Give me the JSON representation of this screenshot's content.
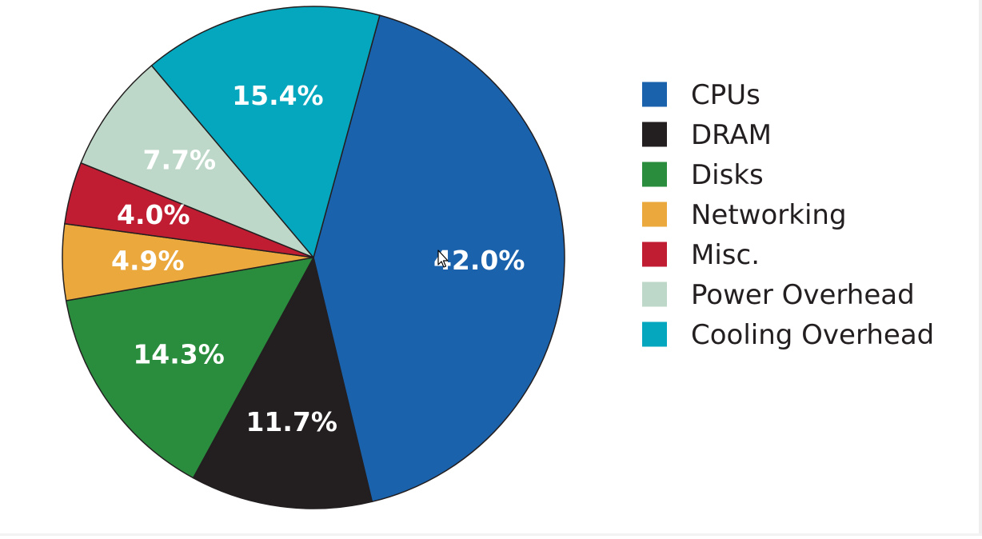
{
  "chart_data": {
    "type": "pie",
    "slices": [
      {
        "label": "CPUs",
        "value": 42.0,
        "value_label": "42.0%",
        "color": "#1b62ad"
      },
      {
        "label": "DRAM",
        "value": 11.7,
        "value_label": "11.7%",
        "color": "#231f20"
      },
      {
        "label": "Disks",
        "value": 14.3,
        "value_label": "14.3%",
        "color": "#2a8d3e"
      },
      {
        "label": "Networking",
        "value": 4.9,
        "value_label": "4.9%",
        "color": "#eaa83d"
      },
      {
        "label": "Misc.",
        "value": 4.0,
        "value_label": "4.0%",
        "color": "#c01d33"
      },
      {
        "label": "Power Overhead",
        "value": 7.7,
        "value_label": "7.7%",
        "color": "#bdd8c8"
      },
      {
        "label": "Cooling Overhead",
        "value": 15.4,
        "value_label": "15.4%",
        "color": "#05a7be"
      }
    ],
    "start_angle_deg": 15.3,
    "direction": "clockwise",
    "legend_position": "right"
  }
}
